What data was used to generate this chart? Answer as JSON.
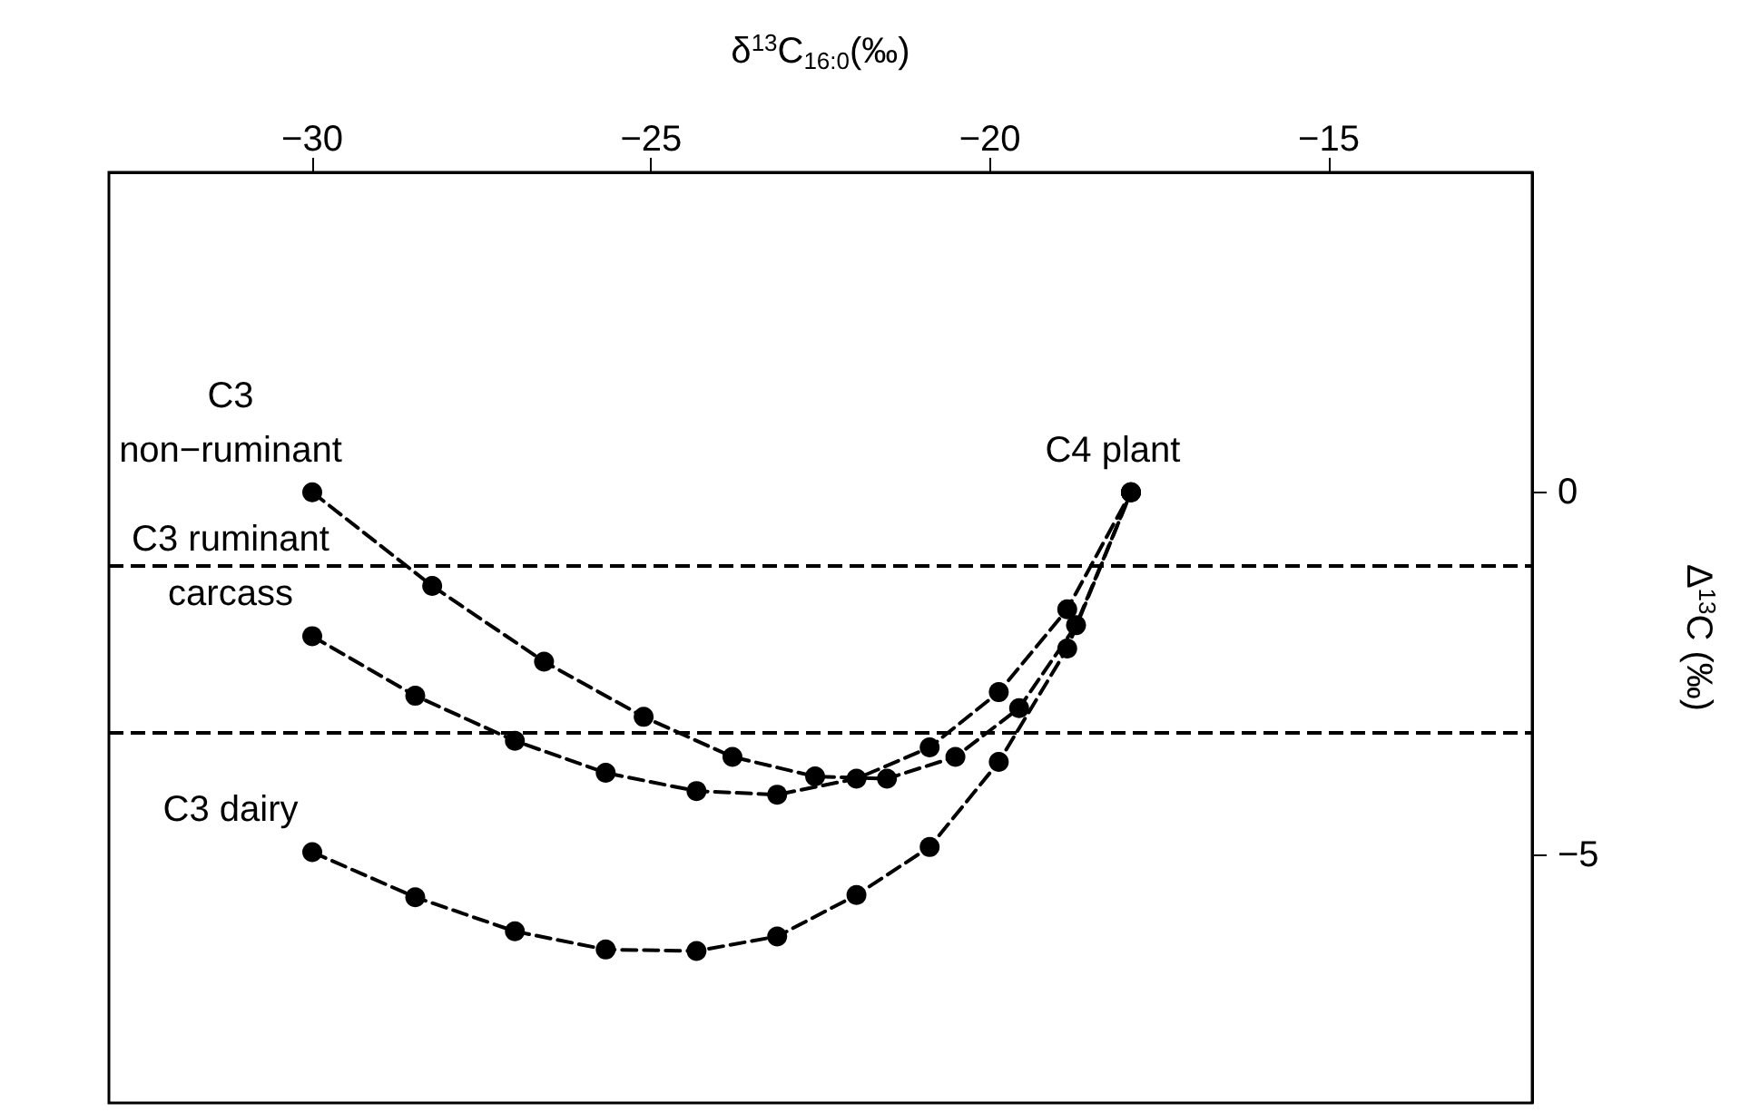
{
  "chart_data": {
    "type": "line",
    "xlabel": "δ$^{13}$C$_{16:0}$(‰)",
    "ylabel": "Δ$^{13}$C (‰)",
    "xlim": [
      -33,
      -12
    ],
    "xticks": [
      -30,
      -25,
      -20,
      -15
    ],
    "ylim": [
      -8.4,
      4.4
    ],
    "yticks": [
      -5,
      0
    ],
    "marker": "circle",
    "line_style": "dashed",
    "series": [
      {
        "name": "C3\nnon−ruminant",
        "color": "#000000",
        "x": [
          -30,
          -28.23,
          -26.58,
          -25.11,
          -23.8,
          -22.58,
          -21.52,
          -20.51,
          -19.57,
          -18.73,
          -17.92
        ],
        "values": [
          0,
          -1.29,
          -2.33,
          -3.09,
          -3.64,
          -3.91,
          -3.94,
          -3.64,
          -2.97,
          -1.83,
          0
        ]
      },
      {
        "name": "C3 ruminant\ncarcass",
        "color": "#000000",
        "x": [
          -30,
          -28.48,
          -27.01,
          -25.67,
          -24.33,
          -23.14,
          -21.97,
          -20.89,
          -19.87,
          -18.86,
          -17.92
        ],
        "values": [
          -1.98,
          -2.8,
          -3.42,
          -3.86,
          -4.11,
          -4.16,
          -3.94,
          -3.51,
          -2.75,
          -1.61,
          0
        ]
      },
      {
        "name": "C3 dairy",
        "color": "#000000",
        "x": [
          -30,
          -28.48,
          -27.01,
          -25.67,
          -24.33,
          -23.14,
          -21.97,
          -20.89,
          -19.87,
          -18.86,
          -17.92
        ],
        "values": [
          -4.95,
          -5.57,
          -6.04,
          -6.29,
          -6.31,
          -6.11,
          -5.54,
          -4.88,
          -3.71,
          -2.15,
          0
        ]
      }
    ],
    "ref_lines": [
      {
        "axis": "y",
        "value": -1
      },
      {
        "axis": "y",
        "value": -3.3
      }
    ],
    "annotations": [
      {
        "text": "C4 plant",
        "x": -17.92,
        "y": 0
      }
    ]
  }
}
